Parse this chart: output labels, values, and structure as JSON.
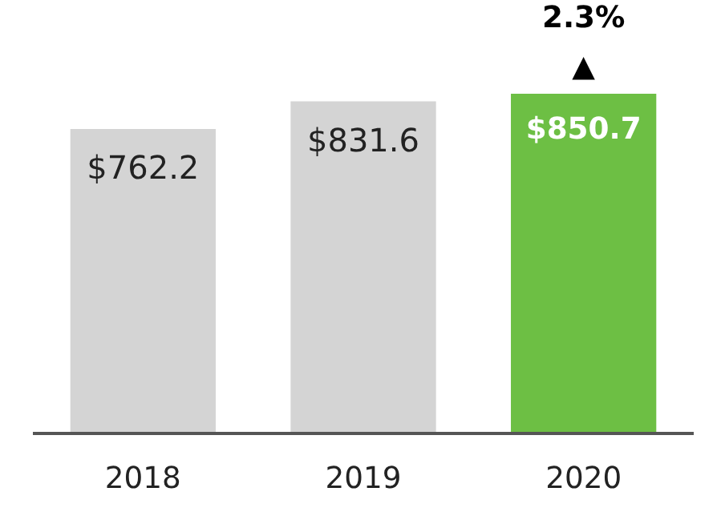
{
  "chart_data": {
    "type": "bar",
    "categories": [
      "2018",
      "2019",
      "2020"
    ],
    "values": [
      762.2,
      831.6,
      850.7
    ],
    "value_labels": [
      "$762.2",
      "$831.6",
      "$850.7"
    ],
    "colors": [
      "#d4d4d4",
      "#d4d4d4",
      "#6dbf44"
    ],
    "tick_labels": "x",
    "grid": false,
    "annotations": [
      {
        "text": "2.3%\n▲",
        "x": "2020",
        "y": 850.7
      }
    ]
  }
}
